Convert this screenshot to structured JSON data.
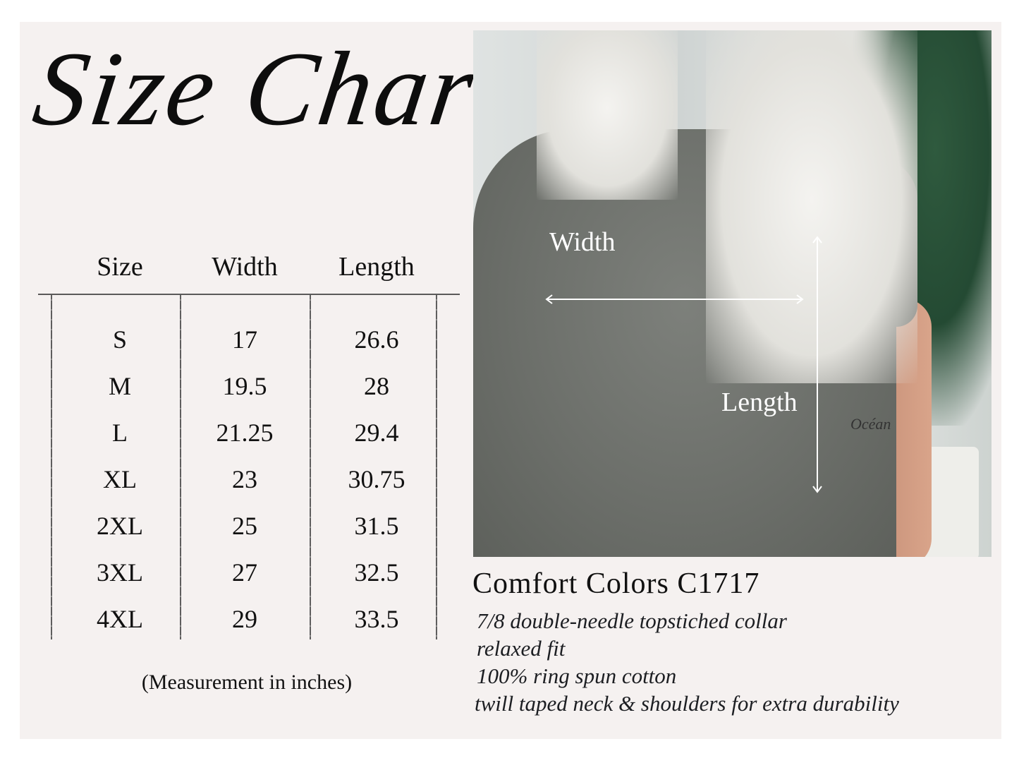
{
  "title": "Size Chart",
  "table": {
    "headers": [
      "Size",
      "Width",
      "Length"
    ],
    "rows": [
      [
        "S",
        "17",
        "26.6"
      ],
      [
        "M",
        "19.5",
        "28"
      ],
      [
        "L",
        "21.25",
        "29.4"
      ],
      [
        "XL",
        "23",
        "30.75"
      ],
      [
        "2XL",
        "25",
        "31.5"
      ],
      [
        "3XL",
        "27",
        "32.5"
      ],
      [
        "4XL",
        "29",
        "33.5"
      ]
    ]
  },
  "note": "(Measurement in inches)",
  "photo": {
    "width_label": "Width",
    "length_label": "Length",
    "tattoo_text": "Océan"
  },
  "product": {
    "name": "Comfort Colors C1717",
    "features": [
      "7/8 double-needle topstiched collar",
      "relaxed fit",
      "100% ring spun cotton",
      "twill taped neck & shoulders for extra durability"
    ]
  },
  "colors": {
    "background": "#f5f1f0",
    "text": "#111111",
    "shirt": "#6c6f6a"
  }
}
